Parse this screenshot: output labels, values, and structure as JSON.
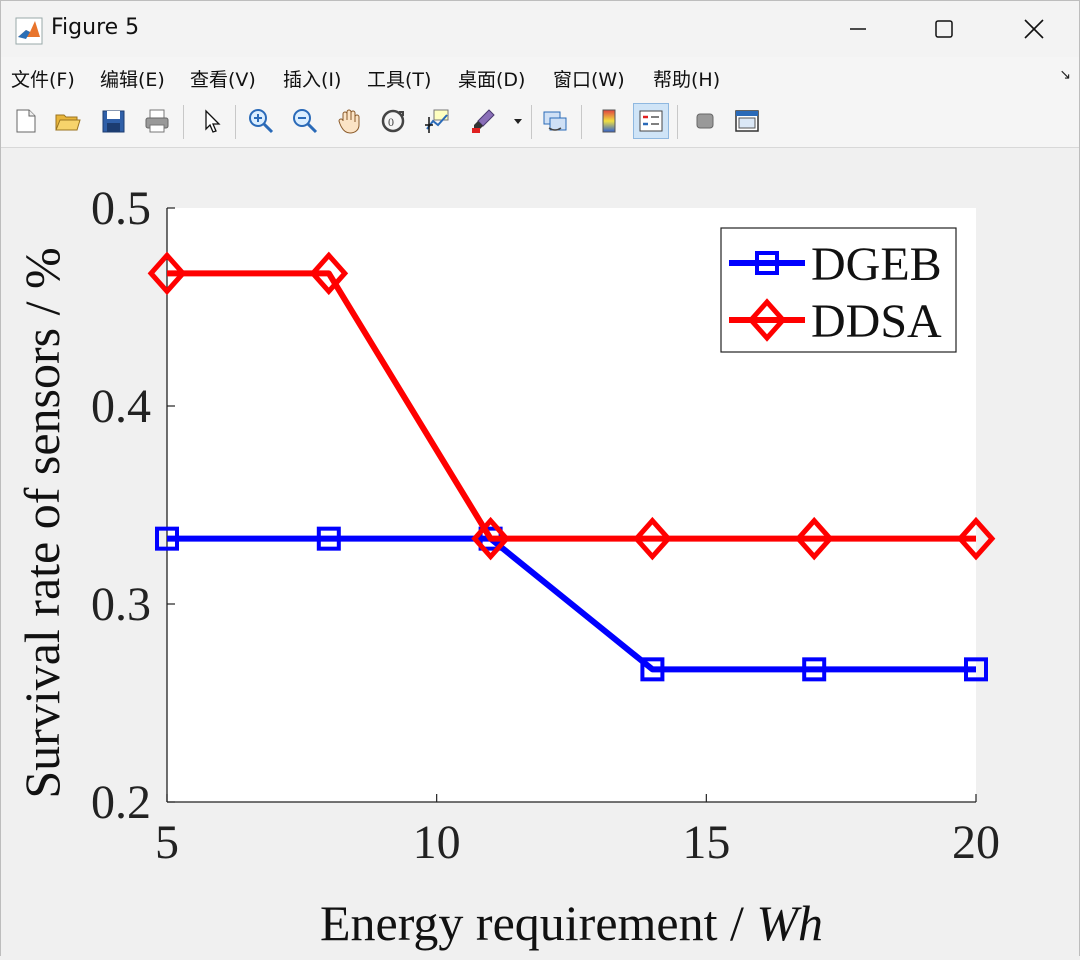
{
  "window": {
    "title": "Figure 5",
    "minimize": "—",
    "maximize": "☐",
    "close": "✕"
  },
  "menu": {
    "items": [
      "文件(F)",
      "编辑(E)",
      "查看(V)",
      "插入(I)",
      "工具(T)",
      "桌面(D)",
      "窗口(W)",
      "帮助(H)"
    ],
    "overflow_icon": "↘"
  },
  "toolbar": {
    "icons": [
      "new-figure-icon",
      "open-icon",
      "save-icon",
      "print-icon",
      "pointer-icon",
      "zoom-in-icon",
      "zoom-out-icon",
      "pan-icon",
      "rotate-3d-icon",
      "data-cursor-icon",
      "brush-icon",
      "dropdown-icon",
      "link-plot-icon",
      "colorbar-icon",
      "legend-icon",
      "hide-plot-tools-icon",
      "show-plot-tools-icon"
    ]
  },
  "chart_data": {
    "type": "line",
    "x": [
      5,
      8,
      11,
      14,
      17,
      20
    ],
    "series": [
      {
        "name": "DGEB",
        "values": [
          0.333,
          0.333,
          0.333,
          0.267,
          0.267,
          0.267
        ],
        "color": "#0000ff",
        "marker": "square"
      },
      {
        "name": "DDSA",
        "values": [
          0.467,
          0.467,
          0.333,
          0.333,
          0.333,
          0.333
        ],
        "color": "#ff0000",
        "marker": "diamond"
      }
    ],
    "xlabel_prefix": "Energy requirement / ",
    "xlabel_unit": "Wh",
    "ylabel": "Survival rate of sensors / %",
    "xlim": [
      5,
      20
    ],
    "ylim": [
      0.2,
      0.5
    ],
    "xticks": [
      "5",
      "10",
      "15",
      "20"
    ],
    "xtick_values": [
      5,
      10,
      15,
      20
    ],
    "yticks": [
      "0.2",
      "0.3",
      "0.4",
      "0.5"
    ],
    "ytick_values": [
      0.2,
      0.3,
      0.4,
      0.5
    ],
    "grid": false,
    "legend_position": "top-right"
  }
}
